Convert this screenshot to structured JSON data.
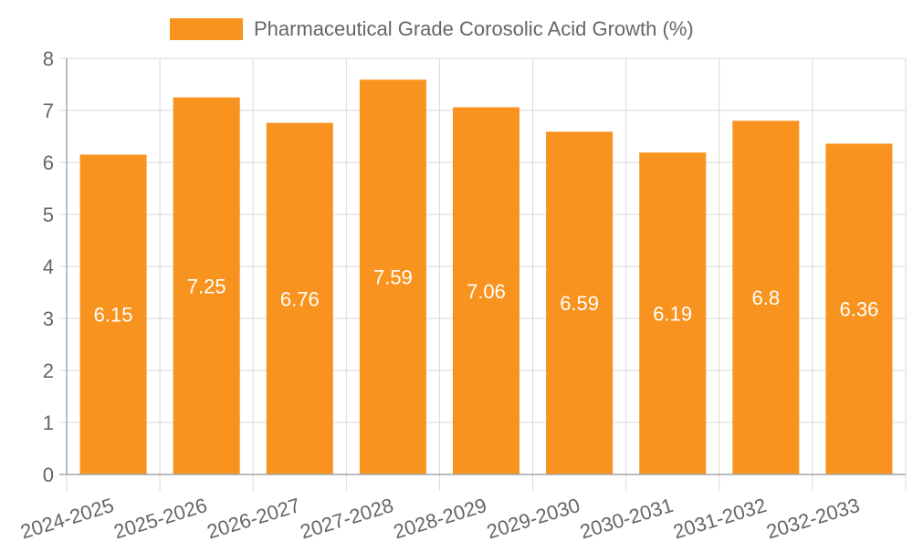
{
  "chart_data": {
    "type": "bar",
    "title": "",
    "xlabel": "",
    "ylabel": "",
    "categories": [
      "2024-2025",
      "2025-2026",
      "2026-2027",
      "2027-2028",
      "2028-2029",
      "2029-2030",
      "2030-2031",
      "2031-2032",
      "2032-2033"
    ],
    "series": [
      {
        "name": "Pharmaceutical Grade Corosolic Acid Growth (%)",
        "values": [
          6.15,
          7.25,
          6.76,
          7.59,
          7.06,
          6.59,
          6.19,
          6.8,
          6.36
        ],
        "value_labels": [
          "6.15",
          "7.25",
          "6.76",
          "7.59",
          "7.06",
          "6.59",
          "6.19",
          "6.8",
          "6.36"
        ],
        "color": "#f7931e"
      }
    ],
    "ylim": [
      0,
      8
    ],
    "yticks": [
      "0",
      "1",
      "2",
      "3",
      "4",
      "5",
      "6",
      "7",
      "8"
    ],
    "grid": true,
    "legend_position": "top-center",
    "colors": {
      "bar": "#f7931e",
      "grid": "#d9d9d9",
      "axis": "#a6a6a6",
      "tick_text": "#666666",
      "legend_text": "#666666",
      "data_label": "#ffffff"
    }
  }
}
